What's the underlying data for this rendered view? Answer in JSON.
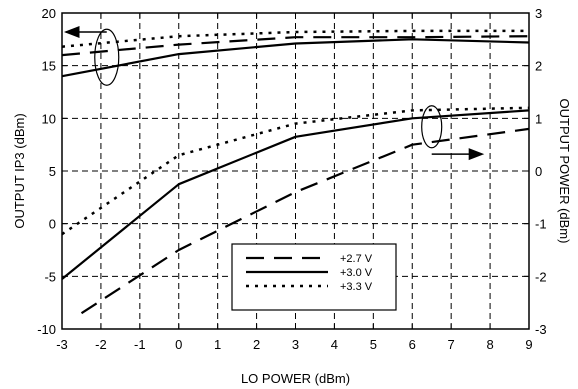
{
  "chart_data": {
    "type": "line",
    "title": "",
    "xlabel": "LO POWER (dBm)",
    "ylabel": "OUTPUT IP3 (dBm)",
    "y2label": "OUTPUT POWER (dBm)",
    "xlim": [
      -3,
      9
    ],
    "ylim": [
      -10,
      20
    ],
    "y2lim": [
      -3,
      3
    ],
    "x_ticks": [
      "-3",
      "-2",
      "-1",
      "0",
      "1",
      "2",
      "3",
      "4",
      "5",
      "6",
      "7",
      "8",
      "9"
    ],
    "y_ticks": [
      "-10",
      "-5",
      "0",
      "5",
      "10",
      "15",
      "20"
    ],
    "y2_ticks": [
      "-3",
      "-2",
      "-1",
      "0",
      "1",
      "2",
      "3"
    ],
    "grid": true,
    "grid_style": "dashed",
    "legend_position": "bottom-right",
    "series": [
      {
        "name": "+2.7 V",
        "axis": "left",
        "style": "long-dash",
        "x": [
          -3,
          0,
          3,
          6,
          9
        ],
        "y": [
          16.0,
          17.0,
          17.7,
          17.7,
          17.8
        ]
      },
      {
        "name": "+3.0 V",
        "axis": "left",
        "style": "solid",
        "x": [
          -3,
          0,
          3,
          6,
          9
        ],
        "y": [
          14.0,
          16.1,
          17.1,
          17.5,
          17.2
        ]
      },
      {
        "name": "+3.3 V",
        "axis": "left",
        "style": "dotted",
        "x": [
          -3,
          0,
          3,
          6,
          9
        ],
        "y": [
          16.8,
          17.8,
          18.2,
          18.3,
          18.3
        ]
      },
      {
        "name": "+2.7 V",
        "axis": "right",
        "style": "long-dash",
        "x": [
          -2.5,
          0,
          3,
          6,
          9
        ],
        "y": [
          -2.7,
          -1.5,
          -0.4,
          0.5,
          0.8
        ]
      },
      {
        "name": "+3.0 V",
        "axis": "right",
        "style": "solid",
        "x": [
          -3,
          0,
          3,
          6,
          9
        ],
        "y": [
          -2.05,
          -0.25,
          0.65,
          1.0,
          1.15
        ]
      },
      {
        "name": "+3.3 V",
        "axis": "right",
        "style": "dotted",
        "x": [
          -3,
          0,
          3,
          6,
          9
        ],
        "y": [
          -1.2,
          0.3,
          0.9,
          1.15,
          1.2
        ]
      }
    ]
  },
  "legend": {
    "entries": [
      {
        "label": "+2.7 V",
        "style": "long-dash"
      },
      {
        "label": "+3.0 V",
        "style": "solid"
      },
      {
        "label": "+3.3 V",
        "style": "dotted"
      }
    ]
  },
  "colors": {
    "line": "#000000",
    "grid": "#000000",
    "background": "#ffffff"
  }
}
